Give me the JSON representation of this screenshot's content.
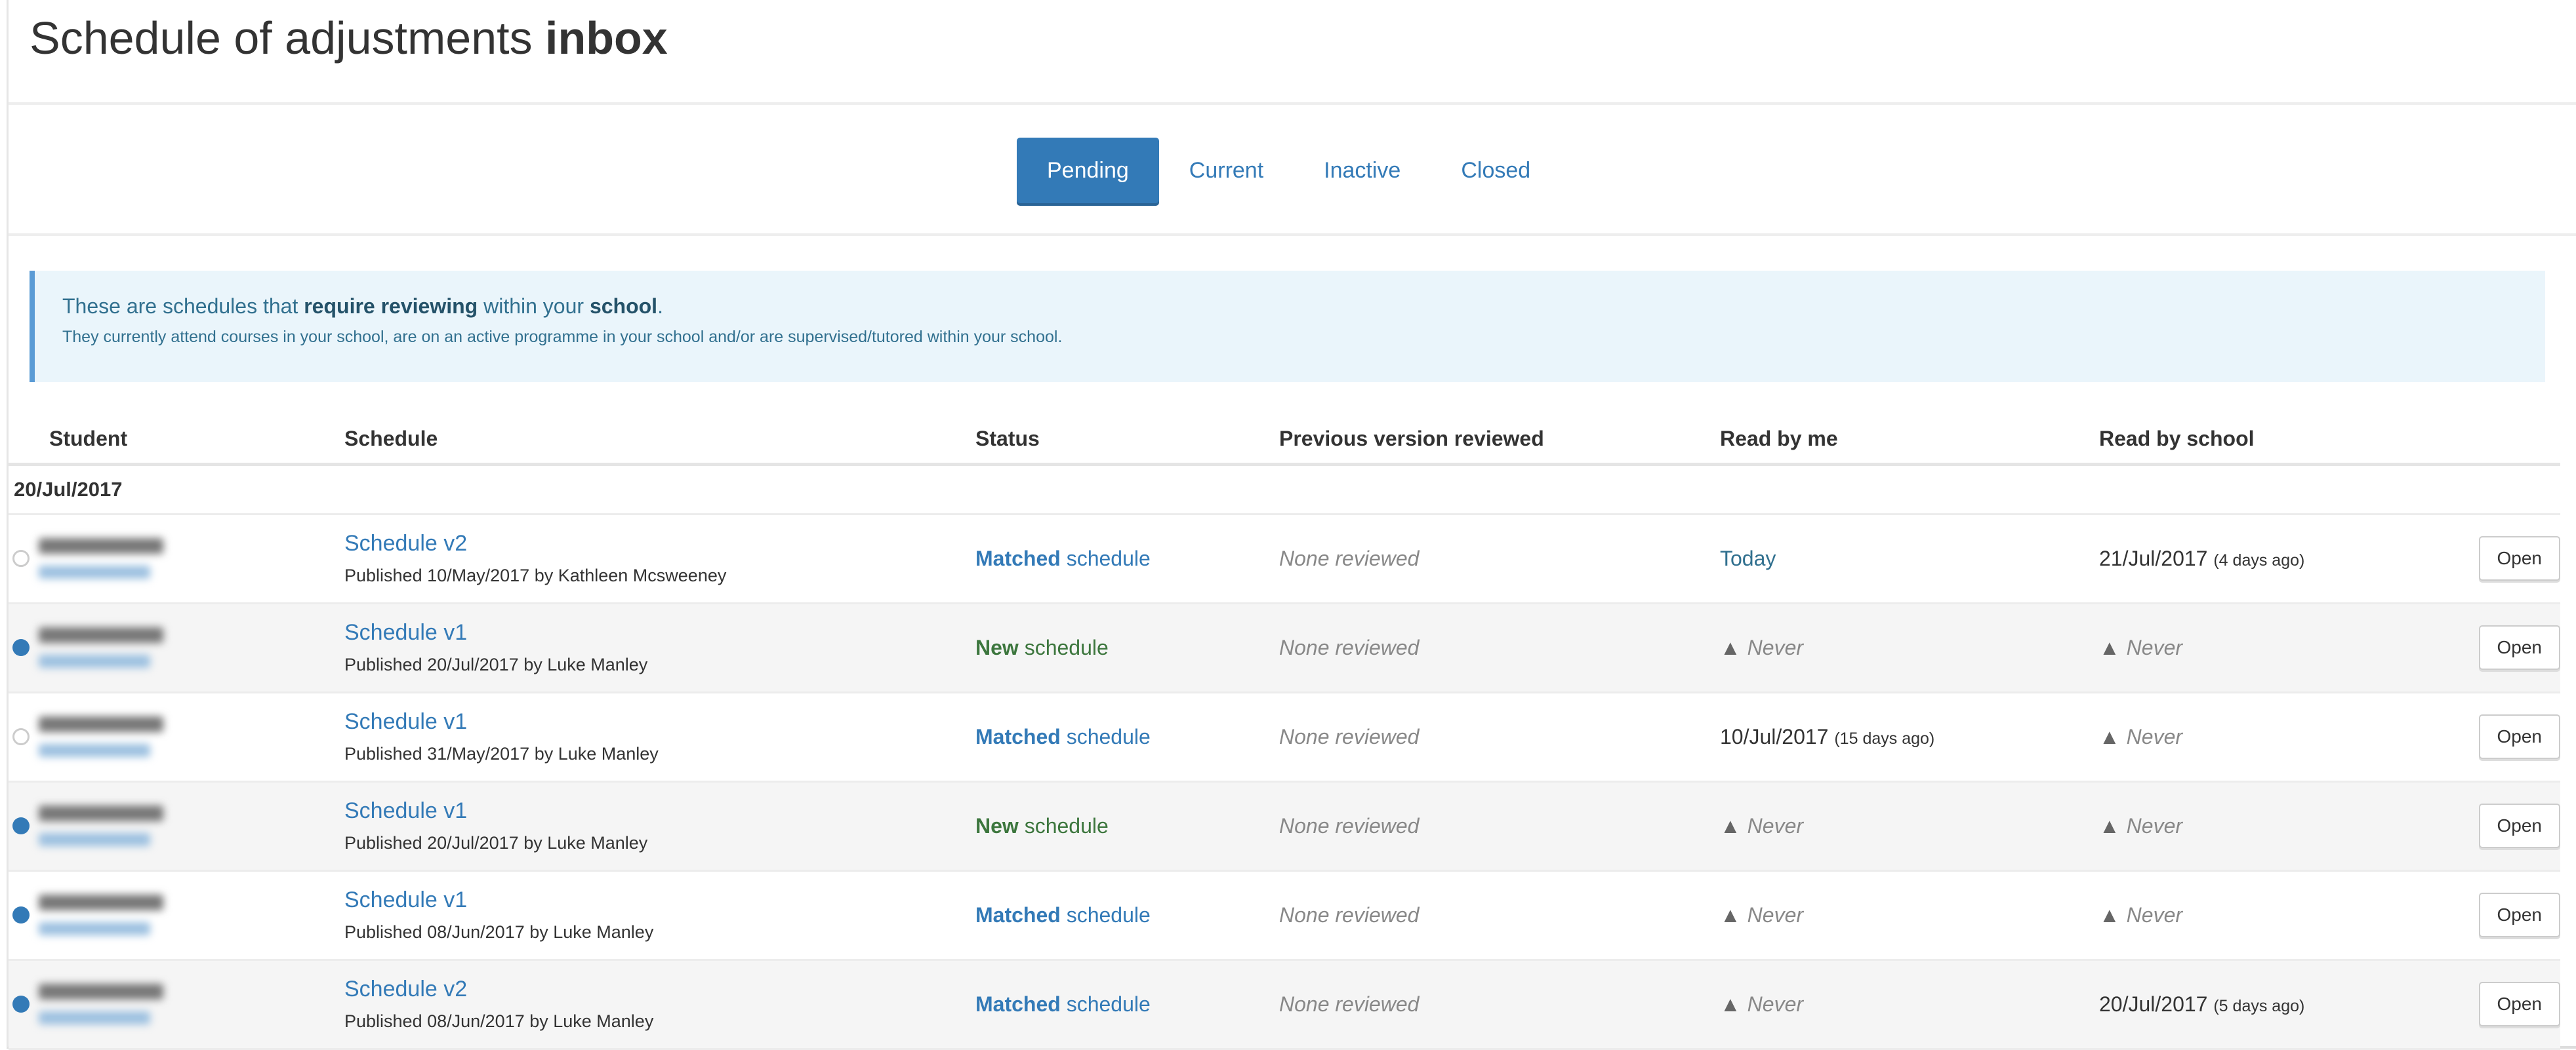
{
  "page": {
    "title_prefix": "Schedule of adjustments",
    "title_bold": "inbox"
  },
  "tabs": [
    {
      "label": "Pending",
      "active": true
    },
    {
      "label": "Current",
      "active": false
    },
    {
      "label": "Inactive",
      "active": false
    },
    {
      "label": "Closed",
      "active": false
    }
  ],
  "info": {
    "line1_a": "These are schedules that ",
    "line1_b": "require reviewing",
    "line1_c": " within your ",
    "line1_d": "school",
    "line1_e": ".",
    "line2": "They currently attend courses in your school, are on an active programme in your school and/or are supervised/tutored within your school."
  },
  "table": {
    "headers": [
      "Student",
      "Schedule",
      "Status",
      "Previous version reviewed",
      "Read by me",
      "Read by school",
      ""
    ],
    "group_date": "20/Jul/2017",
    "status_suffix": "schedule",
    "open_label": "Open",
    "colors": {
      "unread_dot": "#337ab7",
      "read_dot": "#cccccc",
      "accent": "#337ab7",
      "new": "#3c763d"
    },
    "rows": [
      {
        "dot": "read",
        "schedule": "Schedule v2",
        "published": "Published 10/May/2017 by Kathleen Mcsweeney",
        "status": "Matched",
        "previous": "None reviewed",
        "read_me": {
          "text": "Today",
          "ago": "",
          "never": false
        },
        "read_school": {
          "text": "21/Jul/2017",
          "ago": "(4 days ago)",
          "never": false
        }
      },
      {
        "dot": "unread",
        "schedule": "Schedule v1",
        "published": "Published 20/Jul/2017 by Luke Manley",
        "status": "New",
        "previous": "None reviewed",
        "read_me": {
          "text": "Never",
          "ago": "",
          "never": true
        },
        "read_school": {
          "text": "Never",
          "ago": "",
          "never": true
        }
      },
      {
        "dot": "read",
        "schedule": "Schedule v1",
        "published": "Published 31/May/2017 by Luke Manley",
        "status": "Matched",
        "previous": "None reviewed",
        "read_me": {
          "text": "10/Jul/2017",
          "ago": "(15 days ago)",
          "never": false
        },
        "read_school": {
          "text": "Never",
          "ago": "",
          "never": true
        }
      },
      {
        "dot": "unread",
        "schedule": "Schedule v1",
        "published": "Published 20/Jul/2017 by Luke Manley",
        "status": "New",
        "previous": "None reviewed",
        "read_me": {
          "text": "Never",
          "ago": "",
          "never": true
        },
        "read_school": {
          "text": "Never",
          "ago": "",
          "never": true
        }
      },
      {
        "dot": "unread",
        "schedule": "Schedule v1",
        "published": "Published 08/Jun/2017 by Luke Manley",
        "status": "Matched",
        "previous": "None reviewed",
        "read_me": {
          "text": "Never",
          "ago": "",
          "never": true
        },
        "read_school": {
          "text": "Never",
          "ago": "",
          "never": true
        }
      },
      {
        "dot": "unread",
        "schedule": "Schedule v2",
        "published": "Published 08/Jun/2017 by Luke Manley",
        "status": "Matched",
        "previous": "None reviewed",
        "read_me": {
          "text": "Never",
          "ago": "",
          "never": true
        },
        "read_school": {
          "text": "20/Jul/2017",
          "ago": "(5 days ago)",
          "never": false
        }
      }
    ]
  }
}
